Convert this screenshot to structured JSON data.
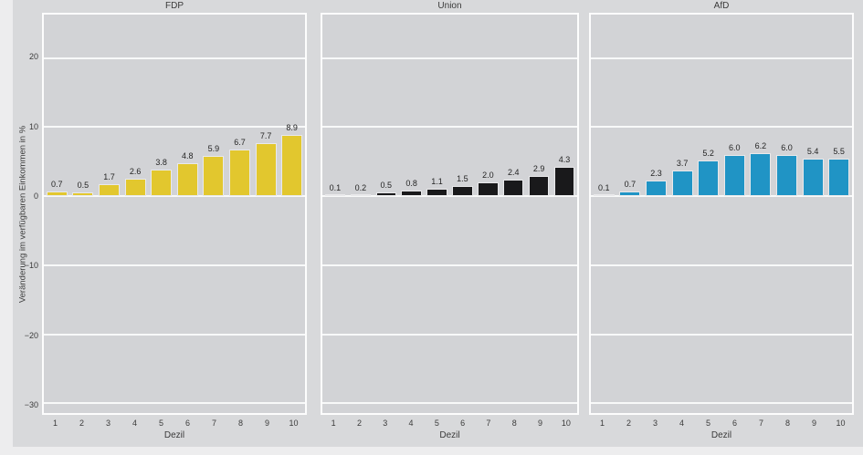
{
  "chart_data": {
    "type": "bar",
    "categories": [
      "1",
      "2",
      "3",
      "4",
      "5",
      "6",
      "7",
      "8",
      "9",
      "10"
    ],
    "xlabel": "Dezil",
    "ylabel": "Veränderung im verfügbaren Einkommen in %",
    "ylim": [
      -31.4,
      26.3
    ],
    "ytick_values": [
      20,
      10,
      0,
      -10,
      -20,
      -30
    ],
    "ytick_labels": [
      "20",
      "10",
      "0",
      "−10",
      "−20",
      "−30"
    ],
    "grid": "horizontal white gridlines on",
    "legend_position": "none",
    "series": [
      {
        "name": "FDP",
        "color": "#e2c72e",
        "values": [
          0.7,
          0.5,
          1.7,
          2.6,
          3.8,
          4.8,
          5.9,
          6.7,
          7.7,
          8.9
        ],
        "labels": [
          "0.7",
          "0.5",
          "1.7",
          "2.6",
          "3.8",
          "4.8",
          "5.9",
          "6.7",
          "7.7",
          "8.9"
        ]
      },
      {
        "name": "Union",
        "color": "#19191b",
        "values": [
          0.1,
          0.2,
          0.5,
          0.8,
          1.1,
          1.5,
          2.0,
          2.4,
          2.9,
          4.3
        ],
        "labels": [
          "0.1",
          "0.2",
          "0.5",
          "0.8",
          "1.1",
          "1.5",
          "2.0",
          "2.4",
          "2.9",
          "4.3"
        ]
      },
      {
        "name": "AfD",
        "color": "#2094c5",
        "values": [
          0.1,
          0.7,
          2.3,
          3.7,
          5.2,
          6.0,
          6.2,
          6.0,
          5.4,
          5.5
        ],
        "labels": [
          "0.1",
          "0.7",
          "2.3",
          "3.7",
          "5.2",
          "6.0",
          "6.2",
          "6.0",
          "5.4",
          "5.5"
        ]
      }
    ],
    "colors": {
      "page_bg": "#ededee",
      "figure_bg": "#d8d9db",
      "panel_bg": "#d2d3d6",
      "grid": "#ffffff",
      "bar_edge": "#e9e9eb",
      "text": "#3b3b3b",
      "value_label": "#242424"
    }
  }
}
